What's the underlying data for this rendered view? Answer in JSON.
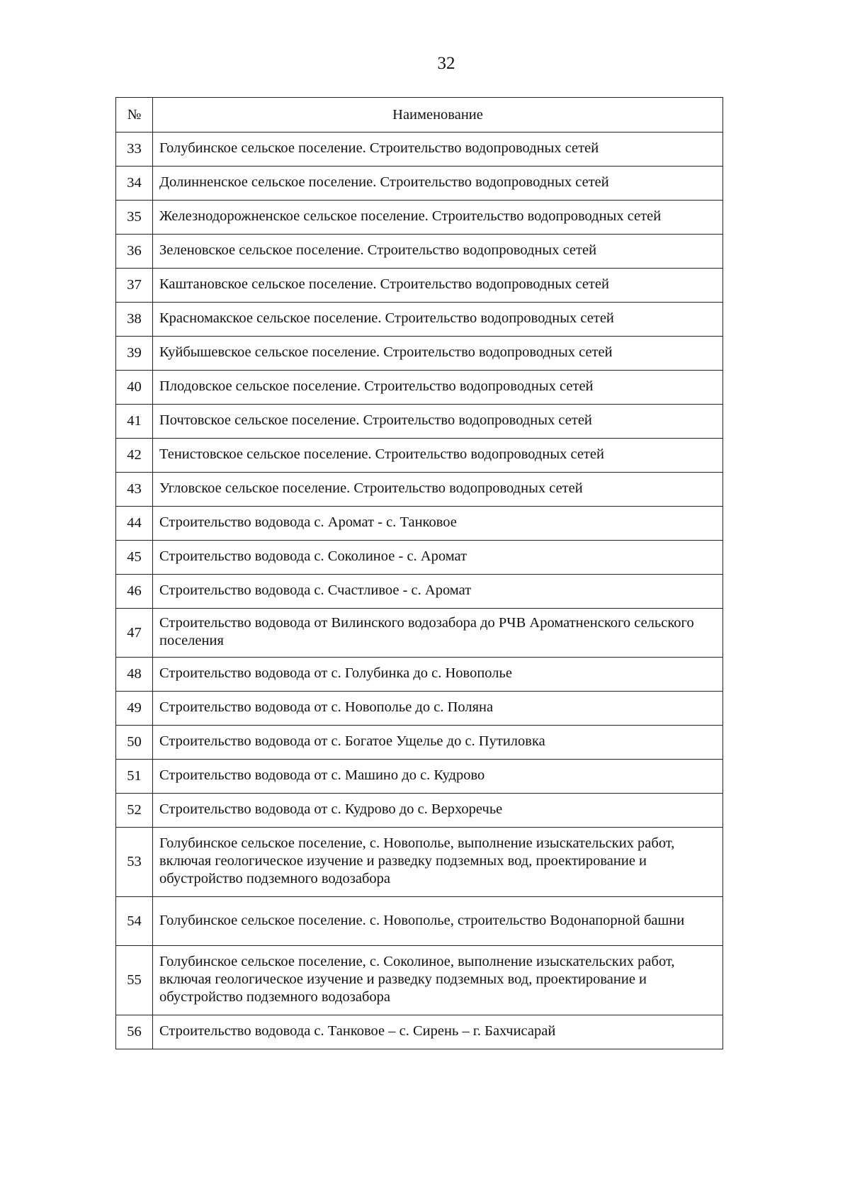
{
  "page_number": "32",
  "table": {
    "headers": [
      "№",
      "Наименование"
    ],
    "rows": [
      {
        "no": "33",
        "name": "Голубинское сельское поселение. Строительство водопроводных сетей",
        "lines": 1
      },
      {
        "no": "34",
        "name": "Долинненское сельское поселение. Строительство водопроводных сетей",
        "lines": 1
      },
      {
        "no": "35",
        "name": "Железнодорожненское сельское поселение. Строительство водопроводных сетей",
        "lines": 1
      },
      {
        "no": "36",
        "name": "Зеленовское сельское поселение. Строительство водопроводных сетей",
        "lines": 1
      },
      {
        "no": "37",
        "name": "Каштановское сельское поселение. Строительство водопроводных сетей",
        "lines": 1
      },
      {
        "no": "38",
        "name": "Красномакское сельское поселение. Строительство водопроводных сетей",
        "lines": 1
      },
      {
        "no": "39",
        "name": "Куйбышевское сельское поселение. Строительство водопроводных сетей",
        "lines": 1
      },
      {
        "no": "40",
        "name": "Плодовское сельское поселение. Строительство водопроводных сетей",
        "lines": 1
      },
      {
        "no": "41",
        "name": "Почтовское сельское поселение. Строительство водопроводных сетей",
        "lines": 1
      },
      {
        "no": "42",
        "name": "Тенистовское сельское поселение. Строительство водопроводных сетей",
        "lines": 1
      },
      {
        "no": "43",
        "name": "Угловское сельское поселение. Строительство водопроводных сетей",
        "lines": 1
      },
      {
        "no": "44",
        "name": "Строительство водовода с. Аромат - с. Танковое",
        "lines": 1
      },
      {
        "no": "45",
        "name": "Строительство водовода с. Соколиное - с. Аромат",
        "lines": 1
      },
      {
        "no": "46",
        "name": "Строительство водовода с. Счастливое - с. Аромат",
        "lines": 1
      },
      {
        "no": "47",
        "name": "Строительство водовода от Вилинского водозабора до РЧВ Ароматненского сельского поселения",
        "lines": 2
      },
      {
        "no": "48",
        "name": "Строительство водовода от с. Голубинка до с. Новополье",
        "lines": 1
      },
      {
        "no": "49",
        "name": "Строительство водовода от с. Новополье до с. Поляна",
        "lines": 1
      },
      {
        "no": "50",
        "name": "Строительство водовода от с. Богатое Ущелье до с. Путиловка",
        "lines": 1
      },
      {
        "no": "51",
        "name": "Строительство водовода от с. Машино до с. Кудрово",
        "lines": 1
      },
      {
        "no": "52",
        "name": "Строительство водовода от с. Кудрово до с. Верхоречье",
        "lines": 1
      },
      {
        "no": "53",
        "name": "Голубинское сельское поселение, с. Новополье, выполнение изыскательских работ, включая геологическое изучение и разведку подземных вод, проектирование и обустройство подземного водозабора",
        "lines": 3
      },
      {
        "no": "54",
        "name": "Голубинское сельское поселение. с. Новополье, строительство Водонапорной башни",
        "lines": 2
      },
      {
        "no": "55",
        "name": "Голубинское сельское поселение, с. Соколиное, выполнение изыскательских работ, включая геологическое изучение и разведку подземных вод, проектирование и обустройство подземного водозабора",
        "lines": 3
      },
      {
        "no": "56",
        "name": "Строительство водовода с. Танковое – с. Сирень – г. Бахчисарай",
        "lines": 1
      }
    ]
  }
}
